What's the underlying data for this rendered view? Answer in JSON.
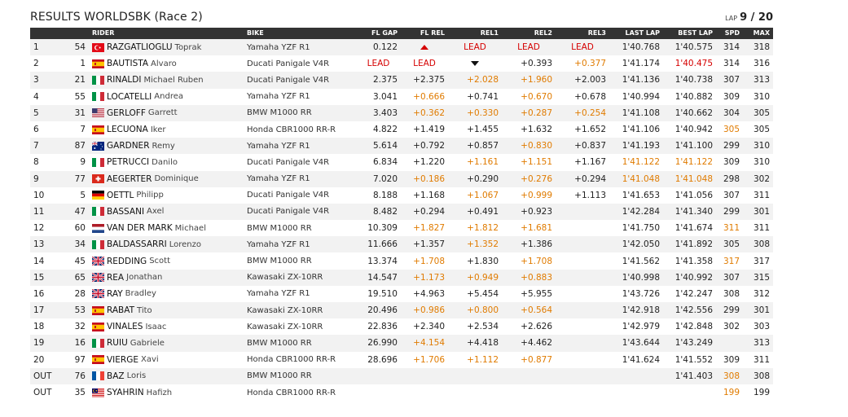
{
  "page": {
    "title": "RESULTS WORLDSBK (Race 2)",
    "lap_label": "LAP",
    "lap_value": "9 / 20"
  },
  "columns": [
    "",
    "",
    "RIDER",
    "BIKE",
    "FL GAP",
    "FL REL",
    "REL1",
    "REL2",
    "REL3",
    "LAST LAP",
    "BEST LAP",
    "SPD",
    "MAX"
  ],
  "colors": {
    "orange": "#e07b00",
    "red": "#d50000",
    "header_bg": "#333333"
  },
  "rows": [
    {
      "pos": "1",
      "num": "54",
      "flag": "TUR",
      "surname": "RAZGATLIOGLU",
      "first": "Toprak",
      "bike": "Yamaha YZF R1",
      "fl_gap": "0.122",
      "fl_rel": {
        "icon": "up-triangle",
        "c": "red"
      },
      "rel1": {
        "t": "LEAD",
        "c": "red"
      },
      "rel2": {
        "t": "LEAD",
        "c": "red"
      },
      "rel3": {
        "t": "LEAD",
        "c": "red"
      },
      "last": "1'40.768",
      "best": {
        "t": "1'40.575",
        "c": "dark"
      },
      "spd": {
        "t": "314",
        "c": "dark"
      },
      "max": "318"
    },
    {
      "pos": "2",
      "num": "1",
      "flag": "ESP",
      "surname": "BAUTISTA",
      "first": "Alvaro",
      "bike": "Ducati Panigale V4R",
      "fl_gap": {
        "t": "LEAD",
        "c": "red"
      },
      "fl_rel": {
        "t": "LEAD",
        "c": "red"
      },
      "rel1": {
        "icon": "down-triangle",
        "c": "dark"
      },
      "rel2": {
        "t": "+0.393",
        "c": "dark"
      },
      "rel3": {
        "t": "+0.377",
        "c": "orange"
      },
      "last": "1'41.174",
      "best": {
        "t": "1'40.475",
        "c": "red"
      },
      "spd": {
        "t": "314",
        "c": "dark"
      },
      "max": "316"
    },
    {
      "pos": "3",
      "num": "21",
      "flag": "ITA",
      "surname": "RINALDI",
      "first": "Michael Ruben",
      "bike": "Ducati Panigale V4R",
      "fl_gap": "2.375",
      "fl_rel": {
        "t": "+2.375",
        "c": "dark"
      },
      "rel1": {
        "t": "+2.028",
        "c": "orange"
      },
      "rel2": {
        "t": "+1.960",
        "c": "orange"
      },
      "rel3": {
        "t": "+2.003",
        "c": "dark"
      },
      "last": "1'41.136",
      "best": {
        "t": "1'40.738",
        "c": "dark"
      },
      "spd": {
        "t": "307",
        "c": "dark"
      },
      "max": "313"
    },
    {
      "pos": "4",
      "num": "55",
      "flag": "ITA",
      "surname": "LOCATELLI",
      "first": "Andrea",
      "bike": "Yamaha YZF R1",
      "fl_gap": "3.041",
      "fl_rel": {
        "t": "+0.666",
        "c": "orange"
      },
      "rel1": {
        "t": "+0.741",
        "c": "dark"
      },
      "rel2": {
        "t": "+0.670",
        "c": "orange"
      },
      "rel3": {
        "t": "+0.678",
        "c": "dark"
      },
      "last": "1'40.994",
      "best": {
        "t": "1'40.882",
        "c": "dark"
      },
      "spd": {
        "t": "309",
        "c": "dark"
      },
      "max": "310"
    },
    {
      "pos": "5",
      "num": "31",
      "flag": "USA",
      "surname": "GERLOFF",
      "first": "Garrett",
      "bike": "BMW M1000 RR",
      "fl_gap": "3.403",
      "fl_rel": {
        "t": "+0.362",
        "c": "orange"
      },
      "rel1": {
        "t": "+0.330",
        "c": "orange"
      },
      "rel2": {
        "t": "+0.287",
        "c": "orange"
      },
      "rel3": {
        "t": "+0.254",
        "c": "orange"
      },
      "last": "1'41.108",
      "best": {
        "t": "1'40.662",
        "c": "dark"
      },
      "spd": {
        "t": "304",
        "c": "dark"
      },
      "max": "305"
    },
    {
      "pos": "6",
      "num": "7",
      "flag": "ESP",
      "surname": "LECUONA",
      "first": "Iker",
      "bike": "Honda CBR1000 RR-R",
      "fl_gap": "4.822",
      "fl_rel": {
        "t": "+1.419",
        "c": "dark"
      },
      "rel1": {
        "t": "+1.455",
        "c": "dark"
      },
      "rel2": {
        "t": "+1.632",
        "c": "dark"
      },
      "rel3": {
        "t": "+1.652",
        "c": "dark"
      },
      "last": "1'41.106",
      "best": {
        "t": "1'40.942",
        "c": "dark"
      },
      "spd": {
        "t": "305",
        "c": "orange"
      },
      "max": "305"
    },
    {
      "pos": "7",
      "num": "87",
      "flag": "AUS",
      "surname": "GARDNER",
      "first": "Remy",
      "bike": "Yamaha YZF R1",
      "fl_gap": "5.614",
      "fl_rel": {
        "t": "+0.792",
        "c": "dark"
      },
      "rel1": {
        "t": "+0.857",
        "c": "dark"
      },
      "rel2": {
        "t": "+0.830",
        "c": "orange"
      },
      "rel3": {
        "t": "+0.837",
        "c": "dark"
      },
      "last": "1'41.193",
      "best": {
        "t": "1'41.100",
        "c": "dark"
      },
      "spd": {
        "t": "299",
        "c": "dark"
      },
      "max": "310"
    },
    {
      "pos": "8",
      "num": "9",
      "flag": "ITA",
      "surname": "PETRUCCI",
      "first": "Danilo",
      "bike": "Ducati Panigale V4R",
      "fl_gap": "6.834",
      "fl_rel": {
        "t": "+1.220",
        "c": "dark"
      },
      "rel1": {
        "t": "+1.161",
        "c": "orange"
      },
      "rel2": {
        "t": "+1.151",
        "c": "orange"
      },
      "rel3": {
        "t": "+1.167",
        "c": "dark"
      },
      "last": {
        "t": "1'41.122",
        "c": "orange"
      },
      "best": {
        "t": "1'41.122",
        "c": "orange"
      },
      "spd": {
        "t": "309",
        "c": "dark"
      },
      "max": "310"
    },
    {
      "pos": "9",
      "num": "77",
      "flag": "SUI",
      "surname": "AEGERTER",
      "first": "Dominique",
      "bike": "Yamaha YZF R1",
      "fl_gap": "7.020",
      "fl_rel": {
        "t": "+0.186",
        "c": "orange"
      },
      "rel1": {
        "t": "+0.290",
        "c": "dark"
      },
      "rel2": {
        "t": "+0.276",
        "c": "orange"
      },
      "rel3": {
        "t": "+0.294",
        "c": "dark"
      },
      "last": {
        "t": "1'41.048",
        "c": "orange"
      },
      "best": {
        "t": "1'41.048",
        "c": "orange"
      },
      "spd": {
        "t": "298",
        "c": "dark"
      },
      "max": "302"
    },
    {
      "pos": "10",
      "num": "5",
      "flag": "GER",
      "surname": "OETTL",
      "first": "Philipp",
      "bike": "Ducati Panigale V4R",
      "fl_gap": "8.188",
      "fl_rel": {
        "t": "+1.168",
        "c": "dark"
      },
      "rel1": {
        "t": "+1.067",
        "c": "orange"
      },
      "rel2": {
        "t": "+0.999",
        "c": "orange"
      },
      "rel3": {
        "t": "+1.113",
        "c": "dark"
      },
      "last": "1'41.653",
      "best": {
        "t": "1'41.056",
        "c": "dark"
      },
      "spd": {
        "t": "307",
        "c": "dark"
      },
      "max": "311"
    },
    {
      "pos": "11",
      "num": "47",
      "flag": "ITA",
      "surname": "BASSANI",
      "first": "Axel",
      "bike": "Ducati Panigale V4R",
      "fl_gap": "8.482",
      "fl_rel": {
        "t": "+0.294",
        "c": "dark"
      },
      "rel1": {
        "t": "+0.491",
        "c": "dark"
      },
      "rel2": {
        "t": "+0.923",
        "c": "dark"
      },
      "rel3": {
        "t": "",
        "c": "dark"
      },
      "last": "1'42.284",
      "best": {
        "t": "1'41.340",
        "c": "dark"
      },
      "spd": {
        "t": "299",
        "c": "dark"
      },
      "max": "301"
    },
    {
      "pos": "12",
      "num": "60",
      "flag": "NED",
      "surname": "VAN DER MARK",
      "first": "Michael",
      "bike": "BMW M1000 RR",
      "fl_gap": "10.309",
      "fl_rel": {
        "t": "+1.827",
        "c": "orange"
      },
      "rel1": {
        "t": "+1.812",
        "c": "orange"
      },
      "rel2": {
        "t": "+1.681",
        "c": "orange"
      },
      "rel3": {
        "t": "",
        "c": "dark"
      },
      "last": "1'41.750",
      "best": {
        "t": "1'41.674",
        "c": "dark"
      },
      "spd": {
        "t": "311",
        "c": "orange"
      },
      "max": "311"
    },
    {
      "pos": "13",
      "num": "34",
      "flag": "ITA",
      "surname": "BALDASSARRI",
      "first": "Lorenzo",
      "bike": "Yamaha YZF R1",
      "fl_gap": "11.666",
      "fl_rel": {
        "t": "+1.357",
        "c": "dark"
      },
      "rel1": {
        "t": "+1.352",
        "c": "orange"
      },
      "rel2": {
        "t": "+1.386",
        "c": "dark"
      },
      "rel3": {
        "t": "",
        "c": "dark"
      },
      "last": "1'42.050",
      "best": {
        "t": "1'41.892",
        "c": "dark"
      },
      "spd": {
        "t": "305",
        "c": "dark"
      },
      "max": "308"
    },
    {
      "pos": "14",
      "num": "45",
      "flag": "GBR",
      "surname": "REDDING",
      "first": "Scott",
      "bike": "BMW M1000 RR",
      "fl_gap": "13.374",
      "fl_rel": {
        "t": "+1.708",
        "c": "orange"
      },
      "rel1": {
        "t": "+1.830",
        "c": "dark"
      },
      "rel2": {
        "t": "+1.708",
        "c": "orange"
      },
      "rel3": {
        "t": "",
        "c": "dark"
      },
      "last": "1'41.562",
      "best": {
        "t": "1'41.358",
        "c": "dark"
      },
      "spd": {
        "t": "317",
        "c": "orange"
      },
      "max": "317"
    },
    {
      "pos": "15",
      "num": "65",
      "flag": "GBR",
      "surname": "REA",
      "first": "Jonathan",
      "bike": "Kawasaki ZX-10RR",
      "fl_gap": "14.547",
      "fl_rel": {
        "t": "+1.173",
        "c": "orange"
      },
      "rel1": {
        "t": "+0.949",
        "c": "orange"
      },
      "rel2": {
        "t": "+0.883",
        "c": "orange"
      },
      "rel3": {
        "t": "",
        "c": "dark"
      },
      "last": "1'40.998",
      "best": {
        "t": "1'40.992",
        "c": "dark"
      },
      "spd": {
        "t": "307",
        "c": "dark"
      },
      "max": "315"
    },
    {
      "pos": "16",
      "num": "28",
      "flag": "GBR",
      "surname": "RAY",
      "first": "Bradley",
      "bike": "Yamaha YZF R1",
      "fl_gap": "19.510",
      "fl_rel": {
        "t": "+4.963",
        "c": "dark"
      },
      "rel1": {
        "t": "+5.454",
        "c": "dark"
      },
      "rel2": {
        "t": "+5.955",
        "c": "dark"
      },
      "rel3": {
        "t": "",
        "c": "dark"
      },
      "last": "1'43.726",
      "best": {
        "t": "1'42.247",
        "c": "dark"
      },
      "spd": {
        "t": "308",
        "c": "dark"
      },
      "max": "312"
    },
    {
      "pos": "17",
      "num": "53",
      "flag": "ESP",
      "surname": "RABAT",
      "first": "Tito",
      "bike": "Kawasaki ZX-10RR",
      "fl_gap": "20.496",
      "fl_rel": {
        "t": "+0.986",
        "c": "orange"
      },
      "rel1": {
        "t": "+0.800",
        "c": "orange"
      },
      "rel2": {
        "t": "+0.564",
        "c": "orange"
      },
      "rel3": {
        "t": "",
        "c": "dark"
      },
      "last": "1'42.918",
      "best": {
        "t": "1'42.556",
        "c": "dark"
      },
      "spd": {
        "t": "299",
        "c": "dark"
      },
      "max": "301"
    },
    {
      "pos": "18",
      "num": "32",
      "flag": "ESP",
      "surname": "VINALES",
      "first": "Isaac",
      "bike": "Kawasaki ZX-10RR",
      "fl_gap": "22.836",
      "fl_rel": {
        "t": "+2.340",
        "c": "dark"
      },
      "rel1": {
        "t": "+2.534",
        "c": "dark"
      },
      "rel2": {
        "t": "+2.626",
        "c": "dark"
      },
      "rel3": {
        "t": "",
        "c": "dark"
      },
      "last": "1'42.979",
      "best": {
        "t": "1'42.848",
        "c": "dark"
      },
      "spd": {
        "t": "302",
        "c": "dark"
      },
      "max": "303"
    },
    {
      "pos": "19",
      "num": "16",
      "flag": "ITA",
      "surname": "RUIU",
      "first": "Gabriele",
      "bike": "BMW M1000 RR",
      "fl_gap": "26.990",
      "fl_rel": {
        "t": "+4.154",
        "c": "orange"
      },
      "rel1": {
        "t": "+4.418",
        "c": "dark"
      },
      "rel2": {
        "t": "+4.462",
        "c": "dark"
      },
      "rel3": {
        "t": "",
        "c": "dark"
      },
      "last": "1'43.644",
      "best": {
        "t": "1'43.249",
        "c": "dark"
      },
      "spd": {
        "t": "",
        "c": "dark"
      },
      "max": "313"
    },
    {
      "pos": "20",
      "num": "97",
      "flag": "ESP",
      "surname": "VIERGE",
      "first": "Xavi",
      "bike": "Honda CBR1000 RR-R",
      "fl_gap": "28.696",
      "fl_rel": {
        "t": "+1.706",
        "c": "orange"
      },
      "rel1": {
        "t": "+1.112",
        "c": "orange"
      },
      "rel2": {
        "t": "+0.877",
        "c": "orange"
      },
      "rel3": {
        "t": "",
        "c": "dark"
      },
      "last": "1'41.624",
      "best": {
        "t": "1'41.552",
        "c": "dark"
      },
      "spd": {
        "t": "309",
        "c": "dark"
      },
      "max": "311"
    },
    {
      "pos": "OUT",
      "num": "76",
      "flag": "FRA",
      "surname": "BAZ",
      "first": "Loris",
      "bike": "BMW M1000 RR",
      "fl_gap": "",
      "fl_rel": {
        "t": "",
        "c": "dark"
      },
      "rel1": {
        "t": "",
        "c": "dark"
      },
      "rel2": {
        "t": "",
        "c": "dark"
      },
      "rel3": {
        "t": "",
        "c": "dark"
      },
      "last": "",
      "best": {
        "t": "1'41.403",
        "c": "dark"
      },
      "spd": {
        "t": "308",
        "c": "orange"
      },
      "max": "308"
    },
    {
      "pos": "OUT",
      "num": "35",
      "flag": "MAS",
      "surname": "SYAHRIN",
      "first": "Hafizh",
      "bike": "Honda CBR1000 RR-R",
      "fl_gap": "",
      "fl_rel": {
        "t": "",
        "c": "dark"
      },
      "rel1": {
        "t": "",
        "c": "dark"
      },
      "rel2": {
        "t": "",
        "c": "dark"
      },
      "rel3": {
        "t": "",
        "c": "dark"
      },
      "last": "",
      "best": {
        "t": "",
        "c": "dark"
      },
      "spd": {
        "t": "199",
        "c": "orange"
      },
      "max": "199"
    }
  ]
}
